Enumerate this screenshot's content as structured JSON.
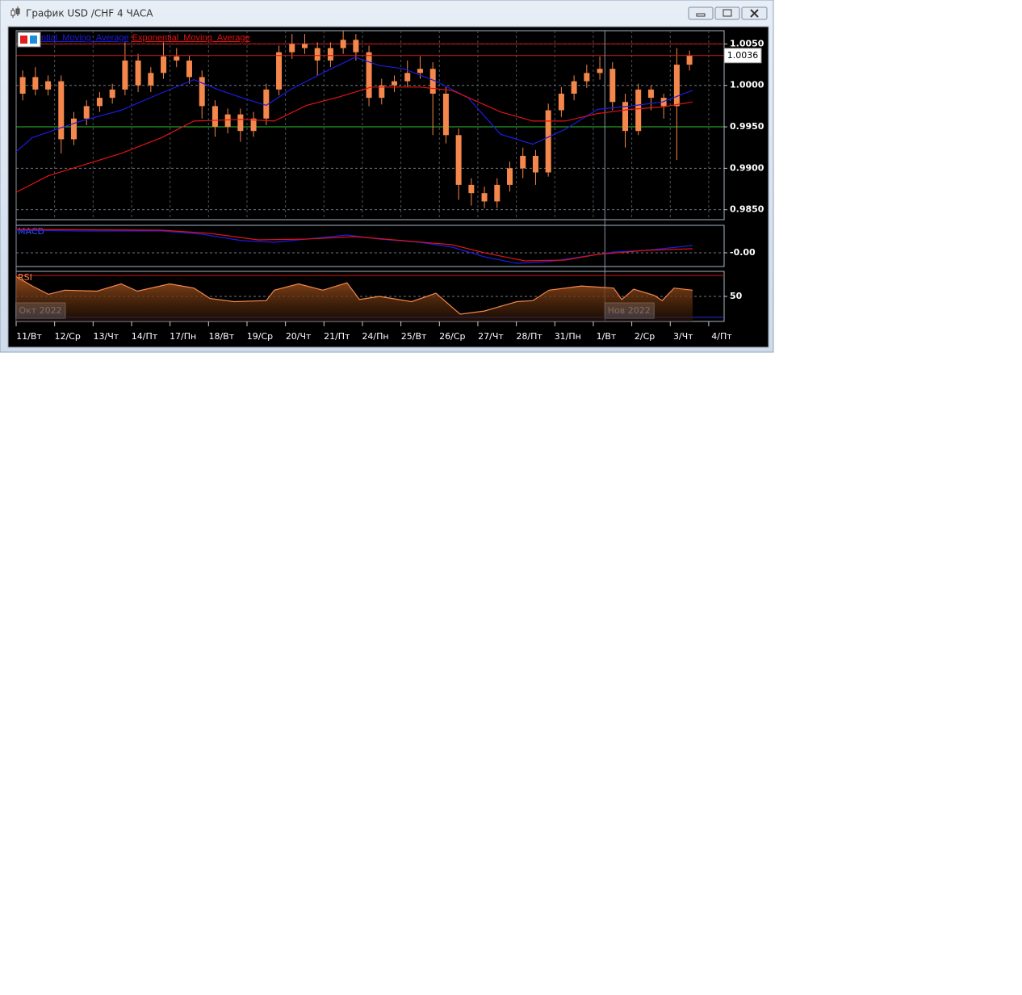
{
  "window": {
    "title": "График USD /CHF  4 ЧАСА"
  },
  "chart_data": [
    {
      "type": "candlestick",
      "xlim": [
        0,
        18.4
      ],
      "xticks": [
        {
          "value": 0,
          "label": "11/Вт"
        },
        {
          "value": 1,
          "label": "12/Ср"
        },
        {
          "value": 2,
          "label": "13/Чт"
        },
        {
          "value": 3,
          "label": "14/Пт"
        },
        {
          "value": 4,
          "label": "17/Пн"
        },
        {
          "value": 5,
          "label": "18/Вт"
        },
        {
          "value": 6,
          "label": "19/Ср"
        },
        {
          "value": 7,
          "label": "20/Чт"
        },
        {
          "value": 8,
          "label": "21/Пт"
        },
        {
          "value": 9,
          "label": "24/Пн"
        },
        {
          "value": 10,
          "label": "25/Вт"
        },
        {
          "value": 11,
          "label": "26/Ср"
        },
        {
          "value": 12,
          "label": "27/Чт"
        },
        {
          "value": 13,
          "label": "28/Пт"
        },
        {
          "value": 14,
          "label": "31/Пн"
        },
        {
          "value": 15,
          "label": "1/Вт"
        },
        {
          "value": 16,
          "label": "2/Ср"
        },
        {
          "value": 17,
          "label": "3/Чт"
        },
        {
          "value": 18,
          "label": "4/Пт"
        }
      ],
      "x_markers": [
        {
          "value": 0,
          "label": "Окт 2022"
        },
        {
          "value": 15.3,
          "label": "Нов 2022"
        }
      ],
      "ylim": [
        0.9838,
        1.0066
      ],
      "yticks": [
        {
          "value": 0.985,
          "label": "0.9850"
        },
        {
          "value": 0.99,
          "label": "0.9900"
        },
        {
          "value": 0.995,
          "label": "0.9950"
        },
        {
          "value": 1.0,
          "label": "1.0000"
        },
        {
          "value": 1.005,
          "label": "1.0050"
        }
      ],
      "grid": true,
      "color": "#f4874b",
      "x": [
        0.17,
        0.5,
        0.83,
        1.17,
        1.5,
        1.83,
        2.17,
        2.5,
        2.83,
        3.17,
        3.5,
        3.83,
        4.17,
        4.5,
        4.83,
        5.17,
        5.5,
        5.83,
        6.17,
        6.5,
        6.83,
        7.17,
        7.5,
        7.83,
        8.17,
        8.5,
        8.83,
        9.17,
        9.5,
        9.83,
        10.17,
        10.5,
        10.83,
        11.17,
        11.5,
        11.83,
        12.17,
        12.5,
        12.83,
        13.17,
        13.5,
        13.83,
        14.17,
        14.5,
        14.83,
        15.17,
        15.5,
        15.83,
        16.17,
        16.5,
        16.83,
        17.17,
        17.5
      ],
      "open": [
        0.999,
        1.001,
        0.9995,
        1.0005,
        0.9935,
        0.996,
        0.9975,
        0.9985,
        0.9995,
        1.003,
        1.0,
        1.0015,
        1.0035,
        1.003,
        1.001,
        0.9975,
        0.995,
        0.9965,
        0.9945,
        0.996,
        0.9995,
        1.004,
        1.005,
        1.0045,
        1.003,
        1.0045,
        1.0055,
        1.004,
        0.9985,
        1.0,
        1.0005,
        1.0015,
        1.002,
        0.999,
        0.994,
        0.988,
        0.987,
        0.986,
        0.988,
        0.99,
        0.9915,
        0.9895,
        0.997,
        0.999,
        1.0005,
        1.0015,
        1.002,
        0.998,
        0.9945,
        0.9995,
        0.9985,
        0.9975,
        1.0025
      ],
      "high": [
        1.0018,
        1.0022,
        1.0012,
        1.0012,
        0.9968,
        0.9982,
        0.9992,
        1.0002,
        1.0052,
        1.0038,
        1.0022,
        1.0052,
        1.0045,
        1.0036,
        1.0018,
        0.9982,
        0.9972,
        0.9972,
        0.9968,
        1.0002,
        1.0048,
        1.0062,
        1.0062,
        1.0052,
        1.0052,
        1.0066,
        1.0062,
        1.0048,
        1.0008,
        1.0012,
        1.003,
        1.0035,
        1.0028,
        0.9998,
        0.9948,
        0.9888,
        0.9878,
        0.9888,
        0.9908,
        0.9925,
        0.9922,
        0.9978,
        0.9998,
        1.0012,
        1.0025,
        1.0035,
        1.0028,
        0.999,
        1.0002,
        1.0,
        0.999,
        1.0045,
        1.0042
      ],
      "low": [
        0.9982,
        0.9988,
        0.9988,
        0.9918,
        0.9928,
        0.9952,
        0.9968,
        0.9978,
        0.9988,
        0.9992,
        0.9992,
        1.0008,
        1.0022,
        1.0002,
        0.996,
        0.9938,
        0.9942,
        0.9932,
        0.9938,
        0.9952,
        0.9988,
        1.0032,
        1.0038,
        1.0012,
        1.0022,
        1.0038,
        1.003,
        0.9975,
        0.9977,
        0.9992,
        0.9998,
        1.0008,
        0.994,
        0.993,
        0.9862,
        0.9855,
        0.9852,
        0.9852,
        0.9872,
        0.9888,
        0.988,
        0.989,
        0.9962,
        0.9982,
        0.9997,
        1.0007,
        0.997,
        0.9925,
        0.994,
        0.997,
        0.996,
        0.991,
        1.0018
      ],
      "close": [
        1.001,
        0.9995,
        1.0005,
        0.9935,
        0.996,
        0.9975,
        0.9985,
        0.9995,
        1.003,
        1.0,
        1.0015,
        1.0035,
        1.003,
        1.001,
        0.9975,
        0.995,
        0.9965,
        0.9945,
        0.996,
        0.9995,
        1.004,
        1.005,
        1.0045,
        1.003,
        1.0045,
        1.0055,
        1.004,
        0.9985,
        1.0,
        1.0005,
        1.0015,
        1.002,
        0.999,
        0.994,
        0.988,
        0.987,
        0.986,
        0.988,
        0.99,
        0.9915,
        0.9895,
        0.997,
        0.999,
        1.0005,
        1.0015,
        1.002,
        0.998,
        0.9945,
        0.9995,
        0.9985,
        0.9975,
        1.0025,
        1.0036
      ],
      "levels": [
        {
          "value": 1.005,
          "color": "#d01515"
        },
        {
          "value": 0.995,
          "color": "#2fbf2f"
        }
      ],
      "series": [
        {
          "name": "ntial_Moving_Average",
          "color": "#1c1ce0",
          "x": [
            0,
            0.42,
            1.05,
            1.68,
            2.73,
            3.78,
            4.62,
            5.25,
            5.87,
            6.5,
            7.13,
            7.97,
            8.81,
            9.44,
            10.07,
            10.91,
            11.75,
            12.59,
            13.43,
            14.27,
            15.11,
            15.95,
            16.79,
            17.58
          ],
          "values": [
            0.992,
            0.9937,
            0.9947,
            0.9957,
            0.997,
            0.9991,
            1.0007,
            0.9995,
            0.9985,
            0.9976,
            0.9995,
            1.0015,
            1.0034,
            1.0024,
            1.002,
            1.0005,
            0.9985,
            0.9941,
            0.9929,
            0.9947,
            0.9971,
            0.9975,
            0.998,
            0.9994
          ]
        },
        {
          "name": "Exponential_Moving_Average",
          "color": "#e01414",
          "x": [
            0,
            0.84,
            1.68,
            2.73,
            3.78,
            4.62,
            5.87,
            6.71,
            7.55,
            8.39,
            9.23,
            10.49,
            11.33,
            12.59,
            13.43,
            14.27,
            15.11,
            15.95,
            16.79,
            17.58
          ],
          "values": [
            0.9871,
            0.9891,
            0.9903,
            0.9918,
            0.9937,
            0.9957,
            0.9959,
            0.9957,
            0.9976,
            0.9986,
            0.9998,
            0.9998,
            0.9994,
            0.9968,
            0.9957,
            0.9957,
            0.9966,
            0.9971,
            0.9974,
            0.998
          ]
        }
      ]
    },
    {
      "type": "line",
      "title": "MACD",
      "ylim": [
        -0.0034,
        0.0068
      ],
      "yticks": [
        {
          "value": 0,
          "label": "-0.00"
        }
      ],
      "series": [
        {
          "color": "#1c1ce0",
          "x": [
            0,
            1.68,
            3.78,
            4.83,
            5.87,
            6.71,
            7.55,
            8.6,
            9.44,
            10.49,
            11.33,
            12.17,
            13.01,
            13.85,
            14.69,
            15.53,
            16.37,
            17.58
          ],
          "values": [
            0.0056,
            0.0054,
            0.0054,
            0.0046,
            0.003,
            0.0026,
            0.0034,
            0.0044,
            0.0034,
            0.0026,
            0.0014,
            -0.001,
            -0.0026,
            -0.0022,
            -0.001,
            0.0002,
            0.0006,
            0.0018
          ]
        },
        {
          "color": "#e01414",
          "x": [
            0,
            3.78,
            5.04,
            6.29,
            7.55,
            8.81,
            10.07,
            11.33,
            12.17,
            13.22,
            14.27,
            15.11,
            16.37,
            17.58
          ],
          "values": [
            0.0058,
            0.0056,
            0.0048,
            0.0032,
            0.0034,
            0.004,
            0.003,
            0.002,
            0,
            -0.002,
            -0.0018,
            -0.0004,
            0.0006,
            0.001
          ]
        }
      ]
    },
    {
      "type": "line",
      "title": "RSI",
      "ylim": [
        26,
        74
      ],
      "yticks": [
        50
      ],
      "levels": [
        {
          "value": 70,
          "color": "#d01515"
        },
        {
          "value": 30,
          "color": "#2233dd"
        }
      ],
      "series": [
        {
          "color": "#f4874b",
          "fill": true,
          "x": [
            0,
            0.42,
            0.84,
            1.26,
            2.1,
            2.73,
            3.15,
            3.99,
            4.62,
            5.04,
            5.67,
            6.5,
            6.71,
            7.34,
            7.97,
            8.6,
            8.92,
            9.44,
            10.28,
            10.91,
            11.54,
            12.17,
            13.01,
            13.43,
            13.85,
            14.69,
            15.53,
            15.74,
            16.05,
            16.58,
            16.79,
            17.1,
            17.58
          ],
          "values": [
            69,
            60,
            52,
            56,
            55,
            62,
            55,
            62,
            58,
            48,
            45,
            46,
            56,
            62,
            56,
            63,
            47,
            50,
            45,
            53,
            33,
            36,
            45,
            46,
            56,
            60,
            58,
            47,
            57,
            51,
            46,
            58,
            56
          ]
        }
      ]
    }
  ]
}
